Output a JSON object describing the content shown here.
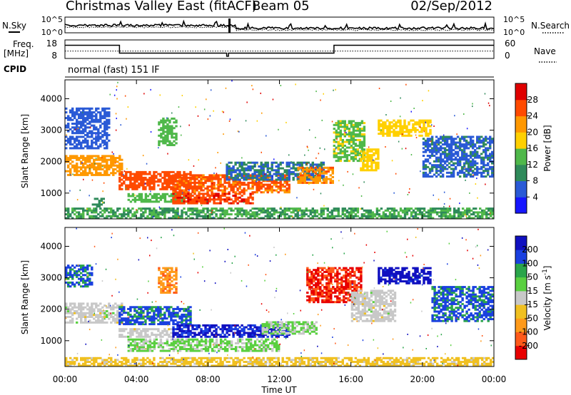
{
  "header": {
    "title": "Christmas Valley East (fitACF)",
    "beam": "Beam 05",
    "date": "02/Sep/2012"
  },
  "strip_labels": {
    "nsky": "N.Sky",
    "nsearch": "N.Search",
    "freq": "Freq.",
    "freq_unit": "[MHz]",
    "nave": "Nave",
    "cpid": "CPID",
    "cpid_value": "normal (fast) 151 IF"
  },
  "noise_axis": {
    "ticks": [
      "10^5",
      "10^0"
    ]
  },
  "freq_axis": {
    "ticks": [
      "18",
      "8"
    ],
    "right_ticks": [
      "60",
      "0"
    ],
    "ylim": [
      8,
      18
    ]
  },
  "freq_series": {
    "x": [
      0.0,
      3.05,
      3.05,
      9.05,
      9.05,
      9.15,
      9.15,
      15.05,
      15.05,
      24.0
    ],
    "y": [
      15.5,
      15.5,
      10.5,
      10.5,
      8.5,
      8.5,
      10.5,
      10.5,
      15.5,
      15.5
    ]
  },
  "nave_line_mhz": 11.8,
  "x_axis": {
    "label": "Time UT",
    "ticks": [
      "00:00",
      "04:00",
      "08:00",
      "12:00",
      "16:00",
      "20:00",
      "00:00"
    ],
    "tick_hours": [
      0,
      4,
      8,
      12,
      16,
      20,
      24
    ],
    "xlim": [
      0,
      24
    ]
  },
  "y_axis": {
    "label": "Slant Range [km]",
    "ticks": [
      1000,
      2000,
      3000,
      4000
    ],
    "ylim": [
      180,
      4600
    ]
  },
  "power_scale": {
    "label": "Power [dB]",
    "ticks": [
      "4",
      "8",
      "12",
      "16",
      "20",
      "24",
      "28"
    ],
    "colors": [
      "#1616ff",
      "#2a5ad6",
      "#2f8a5a",
      "#4fb84a",
      "#ffd000",
      "#ff9800",
      "#ff4a00",
      "#e00000"
    ]
  },
  "velocity_scale": {
    "label": "Velocity [m s^-1]",
    "ticks": [
      "-200",
      "-100",
      "-50",
      "-15",
      "15",
      "50",
      "100",
      "200"
    ],
    "colors": [
      "#e80000",
      "#ff5a1a",
      "#ff9a1a",
      "#f0c020",
      "#c8c8c8",
      "#5ad040",
      "#2aa54a",
      "#1a40e0",
      "#1010c0"
    ]
  },
  "chart_data": [
    {
      "type": "heatmap",
      "title": "Power",
      "xlabel": "Time UT",
      "ylabel": "Slant Range [km]",
      "colorbar": "Power [dB]",
      "xlim": [
        0,
        24
      ],
      "ylim": [
        180,
        4600
      ],
      "clim": [
        0,
        32
      ],
      "regions": [
        {
          "t0": 0.0,
          "t1": 3.2,
          "r0": 1550,
          "r1": 2200,
          "v": 22
        },
        {
          "t0": 0.0,
          "t1": 2.5,
          "r0": 2400,
          "r1": 3700,
          "v": 6
        },
        {
          "t0": 1.5,
          "t1": 2.2,
          "r0": 550,
          "r1": 800,
          "v": 10
        },
        {
          "t0": 3.0,
          "t1": 7.0,
          "r0": 1100,
          "r1": 1700,
          "v": 26
        },
        {
          "t0": 3.5,
          "t1": 7.0,
          "r0": 700,
          "r1": 1000,
          "v": 14
        },
        {
          "t0": 5.2,
          "t1": 6.2,
          "r0": 2500,
          "r1": 3400,
          "v": 14
        },
        {
          "t0": 6.0,
          "t1": 12.5,
          "r0": 1000,
          "r1": 1600,
          "v": 25
        },
        {
          "t0": 6.0,
          "t1": 10.5,
          "r0": 650,
          "r1": 1000,
          "v": 27
        },
        {
          "t0": 9.0,
          "t1": 14.5,
          "r0": 1400,
          "r1": 2000,
          "v": 8
        },
        {
          "t0": 13.0,
          "t1": 15.0,
          "r0": 1300,
          "r1": 1800,
          "v": 23
        },
        {
          "t0": 15.0,
          "t1": 16.8,
          "r0": 2000,
          "r1": 3300,
          "v": 15
        },
        {
          "t0": 16.5,
          "t1": 17.5,
          "r0": 1700,
          "r1": 2400,
          "v": 18
        },
        {
          "t0": 17.5,
          "t1": 20.5,
          "r0": 2800,
          "r1": 3300,
          "v": 18
        },
        {
          "t0": 20.0,
          "t1": 24.0,
          "r0": 1500,
          "r1": 2800,
          "v": 7
        },
        {
          "t0": 0.0,
          "t1": 24.0,
          "r0": 180,
          "r1": 500,
          "v": 12
        }
      ]
    },
    {
      "type": "heatmap",
      "title": "Velocity",
      "xlabel": "Time UT",
      "ylabel": "Slant Range [km]",
      "colorbar": "Velocity [m s^-1]",
      "xlim": [
        0,
        24
      ],
      "ylim": [
        180,
        4600
      ],
      "clim": [
        -250,
        250
      ],
      "regions": [
        {
          "t0": 0.0,
          "t1": 3.2,
          "r0": 1550,
          "r1": 2200,
          "v": 0
        },
        {
          "t0": 0.0,
          "t1": 1.5,
          "r0": 2700,
          "r1": 3400,
          "v": 150
        },
        {
          "t0": 3.0,
          "t1": 7.0,
          "r0": 1500,
          "r1": 2100,
          "v": 150
        },
        {
          "t0": 3.0,
          "t1": 6.0,
          "r0": 1100,
          "r1": 1400,
          "v": 0
        },
        {
          "t0": 5.2,
          "t1": 6.2,
          "r0": 2500,
          "r1": 3300,
          "v": -120
        },
        {
          "t0": 6.0,
          "t1": 12.5,
          "r0": 1100,
          "r1": 1500,
          "v": 200
        },
        {
          "t0": 3.5,
          "t1": 12.0,
          "r0": 650,
          "r1": 1050,
          "v": 40
        },
        {
          "t0": 11.0,
          "t1": 14.0,
          "r0": 1200,
          "r1": 1600,
          "v": 30
        },
        {
          "t0": 13.5,
          "t1": 16.5,
          "r0": 2200,
          "r1": 3300,
          "v": -200
        },
        {
          "t0": 16.0,
          "t1": 18.5,
          "r0": 1600,
          "r1": 2600,
          "v": 0
        },
        {
          "t0": 17.5,
          "t1": 20.5,
          "r0": 2800,
          "r1": 3300,
          "v": 220
        },
        {
          "t0": 20.5,
          "t1": 24.0,
          "r0": 1600,
          "r1": 2700,
          "v": 150
        },
        {
          "t0": 0.0,
          "t1": 24.0,
          "r0": 180,
          "r1": 450,
          "v": -50
        }
      ]
    }
  ]
}
